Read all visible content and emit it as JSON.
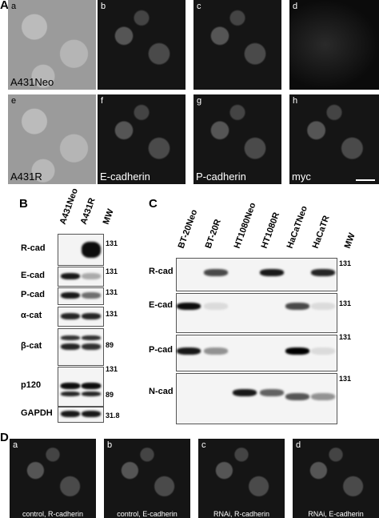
{
  "panel_a": {
    "label": "A",
    "images": [
      {
        "letter": "a",
        "caption": "A431Neo"
      },
      {
        "letter": "b"
      },
      {
        "letter": "c"
      },
      {
        "letter": "d"
      },
      {
        "letter": "e",
        "caption": "A431R"
      },
      {
        "letter": "f",
        "caption": "E-cadherin"
      },
      {
        "letter": "g",
        "caption": "P-cadherin"
      },
      {
        "letter": "h",
        "caption": "myc"
      }
    ]
  },
  "panel_b": {
    "label": "B",
    "columns": [
      "A431Neo",
      "A431R",
      "MW"
    ],
    "rows": [
      {
        "label": "R-cad",
        "mw": "131"
      },
      {
        "label": "E-cad",
        "mw": "131"
      },
      {
        "label": "P-cad",
        "mw": "131"
      },
      {
        "label": "α-cat",
        "mw": "131"
      },
      {
        "label": "β-cat",
        "mw": "89"
      },
      {
        "label": "p120",
        "mw": "131"
      },
      {
        "label": "GAPDH",
        "mw": "31.8"
      }
    ],
    "extra_mw": [
      "89"
    ]
  },
  "panel_c": {
    "label": "C",
    "columns": [
      "BT-20Neo",
      "BT-20R",
      "HT1080Neo",
      "HT1080R",
      "HaCaTNeo",
      "HaCaTR",
      "MW"
    ],
    "rows": [
      {
        "label": "R-cad",
        "mw": "131"
      },
      {
        "label": "E-cad",
        "mw": "131"
      },
      {
        "label": "P-cad",
        "mw": "131"
      },
      {
        "label": "N-cad",
        "mw": "131"
      }
    ]
  },
  "panel_d": {
    "label": "D",
    "images": [
      {
        "letter": "a",
        "caption": "control, R-cadherin"
      },
      {
        "letter": "b",
        "caption": "control, E-cadherin"
      },
      {
        "letter": "c",
        "caption": "RNAi, R-cadherin"
      },
      {
        "letter": "d",
        "caption": "RNAi, E-cadherin"
      }
    ]
  }
}
